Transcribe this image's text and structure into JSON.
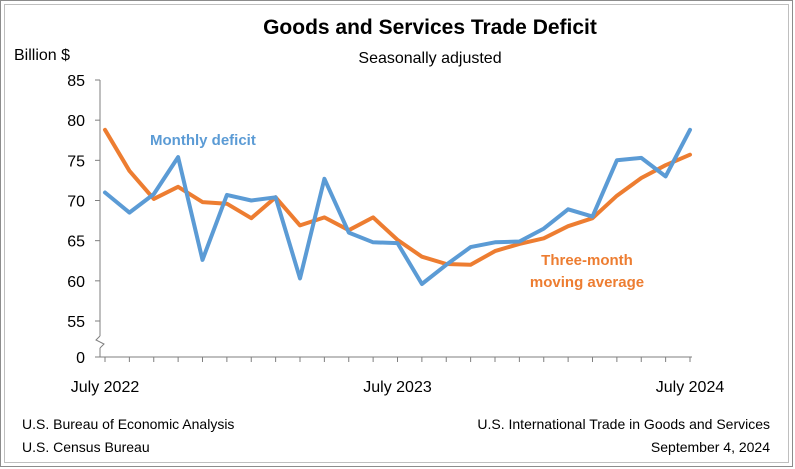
{
  "chart_data": {
    "type": "line",
    "title": "Goods and Services Trade Deficit",
    "subtitle": "Seasonally adjusted",
    "ylabel": "Billion $",
    "ylim": [
      0,
      85
    ],
    "y_axis_break": true,
    "yticks": [
      "85",
      "80",
      "75",
      "70",
      "65",
      "60",
      "55",
      "0"
    ],
    "x_tick_labels": [
      "July 2022",
      "July 2023",
      "July 2024"
    ],
    "x": [
      "2022-07",
      "2022-08",
      "2022-09",
      "2022-10",
      "2022-11",
      "2022-12",
      "2023-01",
      "2023-02",
      "2023-03",
      "2023-04",
      "2023-05",
      "2023-06",
      "2023-07",
      "2023-08",
      "2023-09",
      "2023-10",
      "2023-11",
      "2023-12",
      "2024-01",
      "2024-02",
      "2024-03",
      "2024-04",
      "2024-05",
      "2024-06",
      "2024-07"
    ],
    "series": [
      {
        "name": "Monthly deficit",
        "color": "#5b9bd5",
        "values": [
          71.0,
          68.5,
          70.8,
          75.4,
          62.6,
          70.7,
          70.0,
          70.4,
          60.3,
          72.7,
          66.0,
          64.8,
          64.7,
          59.6,
          62.0,
          64.2,
          64.8,
          64.9,
          66.5,
          68.9,
          68.0,
          75.0,
          75.3,
          73.0,
          78.8
        ],
        "label": "Monthly deficit"
      },
      {
        "name": "Three-month moving average",
        "color": "#ed7d31",
        "values": [
          78.8,
          73.7,
          70.2,
          71.7,
          69.8,
          69.6,
          67.8,
          70.4,
          66.9,
          67.9,
          66.3,
          67.9,
          65.1,
          63.0,
          62.1,
          62.0,
          63.7,
          64.6,
          65.3,
          66.8,
          67.8,
          70.6,
          72.8,
          74.4,
          75.7
        ],
        "label_line1": "Three-month",
        "label_line2": "moving average"
      }
    ],
    "grid": false
  },
  "footer": {
    "left_line1": "U.S. Bureau of Economic Analysis",
    "left_line2": "U.S. Census Bureau",
    "right_line1": "U.S. International Trade in Goods and Services",
    "right_line2": "September 4, 2024"
  }
}
